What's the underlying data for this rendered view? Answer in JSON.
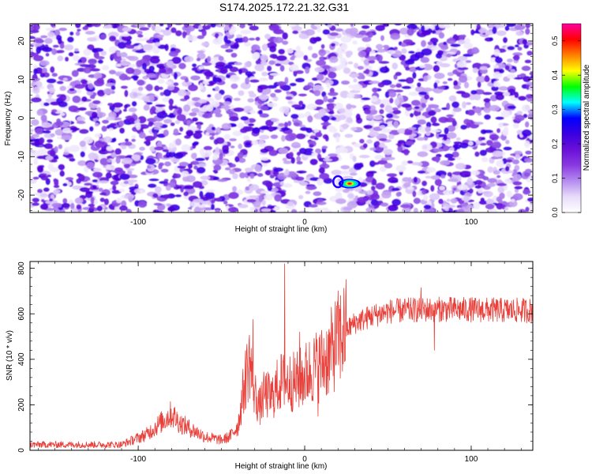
{
  "title": "S174.2025.172.21.32.G31",
  "chart_data": [
    {
      "type": "heatmap",
      "xlabel": "Height of straight line (km)",
      "ylabel": "Frequency (Hz)",
      "xlim": [
        -165,
        137
      ],
      "ylim": [
        -24.5,
        24.5
      ],
      "xticks": [
        -100,
        0,
        100
      ],
      "yticks": [
        -20,
        -10,
        0,
        10,
        20
      ],
      "colorbar": {
        "label": "Normalized spectral amplitude",
        "range": [
          0,
          0.55
        ],
        "ticks": [
          "0.0",
          "0.1",
          "0.2",
          "0.3",
          "0.4",
          "0.5"
        ],
        "colormap": [
          "#ffffff",
          "#e8dcfa",
          "#b58cf0",
          "#8a3ae0",
          "#6a10d8",
          "#3a00e0",
          "#0000ff",
          "#00ffff",
          "#00ff00",
          "#ffff00",
          "#ff8000",
          "#ff0000",
          "#ff00a0"
        ]
      },
      "features": [
        {
          "x": 27,
          "y": -17,
          "peak": 0.55
        },
        {
          "x": 20,
          "y": -16.5,
          "peak": 0.18
        }
      ]
    },
    {
      "type": "line",
      "xlabel": "Height of straight line (km)",
      "ylabel": "SNR (10 * v/v)",
      "xlim": [
        -165,
        137
      ],
      "ylim": [
        0,
        830
      ],
      "xticks": [
        -100,
        0,
        100
      ],
      "yticks": [
        0,
        200,
        400,
        600,
        800
      ],
      "series": [
        {
          "color": "#e8403a",
          "profile_x": [
            -165,
            -110,
            -95,
            -85,
            -80,
            -75,
            -60,
            -50,
            -45,
            -40,
            -36,
            -33,
            -30,
            -27,
            -24,
            -20,
            -15,
            -10,
            -5,
            0,
            5,
            10,
            15,
            20,
            25,
            30,
            40,
            50,
            60,
            80,
            100,
            120,
            137
          ],
          "profile_y": [
            25,
            25,
            70,
            130,
            160,
            120,
            60,
            45,
            60,
            110,
            300,
            400,
            250,
            190,
            250,
            230,
            300,
            300,
            300,
            330,
            360,
            380,
            420,
            490,
            530,
            560,
            590,
            610,
            615,
            620,
            618,
            615,
            615
          ],
          "spikes": [
            {
              "x": -12,
              "y": 820
            },
            {
              "x": -31,
              "y": 575
            },
            {
              "x": -35,
              "y": 440
            },
            {
              "x": -3,
              "y": 520
            },
            {
              "x": 8,
              "y": 150
            },
            {
              "x": 78,
              "y": 440
            },
            {
              "x": 70,
              "y": 715
            }
          ]
        }
      ]
    }
  ]
}
